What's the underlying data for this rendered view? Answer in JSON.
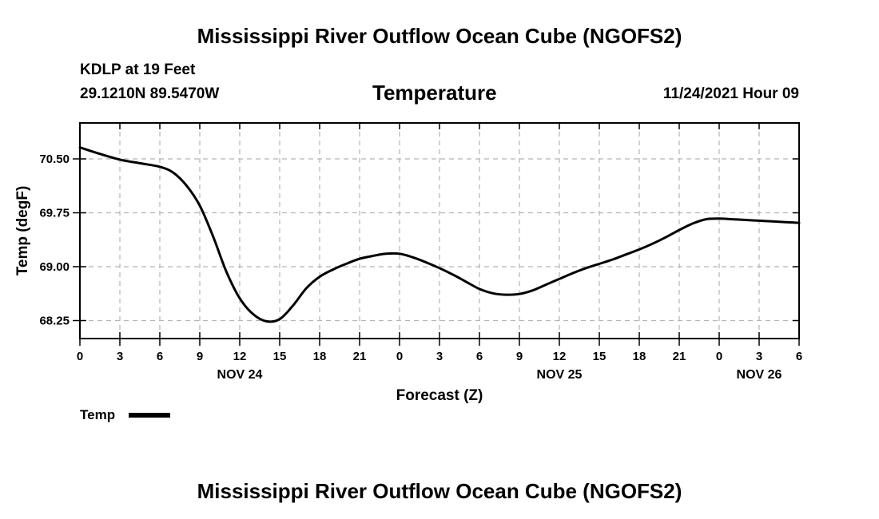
{
  "page": {
    "title_top": "Mississippi River Outflow Ocean Cube (NGOFS2)",
    "title_bottom": "Mississippi River Outflow Ocean Cube (NGOFS2)",
    "station": "KDLP at 19 Feet",
    "coords": "29.1210N  89.5470W",
    "chart_title": "Temperature",
    "timestamp": "11/24/2021 Hour 09"
  },
  "chart_data": {
    "type": "line",
    "title": "Temperature",
    "xlabel": "Forecast (Z)",
    "ylabel": "Temp (degF)",
    "ylim": [
      68.0,
      71.0
    ],
    "xlim": [
      0,
      54
    ],
    "grid": true,
    "yticks": [
      68.25,
      69.0,
      69.75,
      70.5
    ],
    "ytick_labels": [
      "68.25",
      "69.00",
      "69.75",
      "70.50"
    ],
    "xticks": [
      0,
      3,
      6,
      9,
      12,
      15,
      18,
      21,
      24,
      27,
      30,
      33,
      36,
      39,
      42,
      45,
      48,
      51,
      54
    ],
    "xtick_labels": [
      "0",
      "3",
      "6",
      "9",
      "12",
      "15",
      "18",
      "21",
      "0",
      "3",
      "6",
      "9",
      "12",
      "15",
      "18",
      "21",
      "0",
      "3",
      "6"
    ],
    "date_labels": [
      {
        "x": 12,
        "label": "NOV 24"
      },
      {
        "x": 36,
        "label": "NOV 25"
      },
      {
        "x": 51,
        "label": "NOV 26"
      }
    ],
    "legend": {
      "label": "Temp",
      "placement": "bottom-left"
    },
    "series": [
      {
        "name": "Temp",
        "color": "#000000",
        "x": [
          0,
          1.5,
          3,
          4.5,
          6,
          7,
          8,
          9,
          10,
          11,
          12,
          13,
          14,
          15,
          16,
          17,
          18,
          19,
          20,
          21,
          22,
          23,
          24,
          25,
          26,
          27,
          28,
          29,
          30,
          31,
          32,
          33,
          34,
          35,
          36,
          37,
          38,
          39,
          40,
          41,
          42,
          43,
          44,
          45,
          46,
          47,
          48,
          49,
          50,
          51,
          52,
          53,
          54
        ],
        "y": [
          70.66,
          70.57,
          70.49,
          70.44,
          70.39,
          70.31,
          70.13,
          69.85,
          69.42,
          68.93,
          68.56,
          68.34,
          68.24,
          68.27,
          68.46,
          68.7,
          68.86,
          68.96,
          69.04,
          69.11,
          69.15,
          69.18,
          69.18,
          69.13,
          69.06,
          68.98,
          68.89,
          68.79,
          68.69,
          68.63,
          68.61,
          68.62,
          68.67,
          68.75,
          68.83,
          68.91,
          68.98,
          69.04,
          69.1,
          69.17,
          69.24,
          69.32,
          69.41,
          69.51,
          69.6,
          69.66,
          69.67,
          69.66,
          69.65,
          69.64,
          69.63,
          69.62,
          69.61
        ]
      }
    ]
  }
}
